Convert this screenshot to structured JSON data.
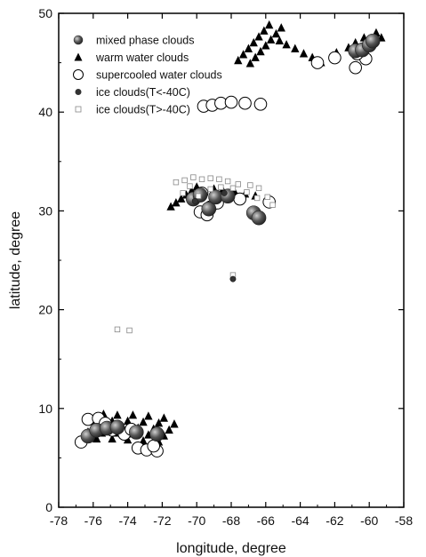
{
  "chart_data": {
    "type": "scatter",
    "title": "",
    "xlabel": "longitude, degree",
    "ylabel": "latitude, degree",
    "xlim": [
      -78,
      -58
    ],
    "ylim": [
      0,
      50
    ],
    "xticks": [
      -78,
      -76,
      -74,
      -72,
      -70,
      -68,
      -66,
      -64,
      -62,
      -60,
      -58
    ],
    "yticks": [
      0,
      10,
      20,
      30,
      40,
      50
    ],
    "grid": false,
    "legend_position": "top-left",
    "series": [
      {
        "name": "mixed phase clouds",
        "marker": "shaded-circle",
        "color": "#555555",
        "points": [
          [
            -60.8,
            46.2
          ],
          [
            -60.4,
            46.3
          ],
          [
            -60.0,
            46.8
          ],
          [
            -59.8,
            47.2
          ],
          [
            -70.2,
            31.2
          ],
          [
            -69.8,
            31.6
          ],
          [
            -69.3,
            30.2
          ],
          [
            -68.9,
            31.4
          ],
          [
            -68.2,
            31.5
          ],
          [
            -66.7,
            29.8
          ],
          [
            -66.4,
            29.3
          ],
          [
            -76.3,
            7.2
          ],
          [
            -75.8,
            7.8
          ],
          [
            -75.2,
            8.0
          ],
          [
            -74.6,
            8.1
          ],
          [
            -73.5,
            7.6
          ],
          [
            -72.3,
            7.4
          ]
        ]
      },
      {
        "name": "warm water clouds",
        "marker": "triangle",
        "color": "#000000",
        "points": [
          [
            -67.6,
            45.2
          ],
          [
            -67.3,
            45.8
          ],
          [
            -67.0,
            46.4
          ],
          [
            -66.7,
            47.0
          ],
          [
            -66.4,
            47.6
          ],
          [
            -66.1,
            48.2
          ],
          [
            -65.8,
            48.8
          ],
          [
            -66.9,
            44.9
          ],
          [
            -66.6,
            45.5
          ],
          [
            -66.3,
            46.1
          ],
          [
            -66.0,
            46.7
          ],
          [
            -65.7,
            47.3
          ],
          [
            -65.4,
            47.9
          ],
          [
            -65.1,
            48.5
          ],
          [
            -65.2,
            47.2
          ],
          [
            -64.8,
            46.8
          ],
          [
            -64.3,
            46.4
          ],
          [
            -63.8,
            45.9
          ],
          [
            -63.3,
            45.5
          ],
          [
            -62.8,
            45.0
          ],
          [
            -61.9,
            46.0
          ],
          [
            -61.2,
            46.5
          ],
          [
            -60.8,
            47.0
          ],
          [
            -60.3,
            47.5
          ],
          [
            -59.6,
            48.0
          ],
          [
            -59.3,
            47.5
          ],
          [
            -71.5,
            30.4
          ],
          [
            -71.2,
            30.8
          ],
          [
            -70.9,
            31.2
          ],
          [
            -70.6,
            31.6
          ],
          [
            -70.3,
            32.0
          ],
          [
            -70.0,
            32.4
          ],
          [
            -69.0,
            32.2
          ],
          [
            -68.5,
            32.1
          ],
          [
            -67.8,
            31.9
          ],
          [
            -67.2,
            31.7
          ],
          [
            -66.6,
            31.5
          ],
          [
            -76.6,
            7.0
          ],
          [
            -76.3,
            7.6
          ],
          [
            -76.0,
            8.2
          ],
          [
            -75.7,
            8.8
          ],
          [
            -75.4,
            9.4
          ],
          [
            -75.8,
            6.9
          ],
          [
            -75.5,
            7.5
          ],
          [
            -75.2,
            8.1
          ],
          [
            -74.9,
            8.7
          ],
          [
            -74.6,
            9.3
          ],
          [
            -74.9,
            6.9
          ],
          [
            -74.6,
            7.5
          ],
          [
            -74.3,
            8.1
          ],
          [
            -74.0,
            8.7
          ],
          [
            -73.7,
            9.3
          ],
          [
            -74.0,
            6.8
          ],
          [
            -73.7,
            7.4
          ],
          [
            -73.4,
            8.0
          ],
          [
            -73.1,
            8.6
          ],
          [
            -72.8,
            9.2
          ],
          [
            -73.1,
            6.7
          ],
          [
            -72.8,
            7.3
          ],
          [
            -72.5,
            7.9
          ],
          [
            -72.2,
            8.5
          ],
          [
            -71.9,
            9.0
          ],
          [
            -72.2,
            6.6
          ],
          [
            -71.9,
            7.2
          ],
          [
            -71.6,
            7.8
          ],
          [
            -71.3,
            8.4
          ]
        ]
      },
      {
        "name": "supercooled water clouds",
        "marker": "open-circle",
        "color": "#000000",
        "points": [
          [
            -63.0,
            45.0
          ],
          [
            -62.0,
            45.5
          ],
          [
            -60.8,
            44.5
          ],
          [
            -60.2,
            45.4
          ],
          [
            -60.7,
            45.9
          ],
          [
            -69.6,
            40.6
          ],
          [
            -69.1,
            40.7
          ],
          [
            -68.6,
            40.9
          ],
          [
            -68.0,
            41.0
          ],
          [
            -67.2,
            40.9
          ],
          [
            -66.3,
            40.8
          ],
          [
            -69.8,
            29.9
          ],
          [
            -69.4,
            29.6
          ],
          [
            -69.2,
            30.4
          ],
          [
            -68.8,
            30.8
          ],
          [
            -67.5,
            31.2
          ],
          [
            -65.8,
            30.9
          ],
          [
            -69.7,
            31.8
          ],
          [
            -76.7,
            6.6
          ],
          [
            -76.3,
            8.9
          ],
          [
            -75.7,
            9.0
          ],
          [
            -75.3,
            8.5
          ],
          [
            -74.9,
            7.8
          ],
          [
            -74.2,
            7.4
          ],
          [
            -73.8,
            7.9
          ],
          [
            -73.4,
            6.0
          ],
          [
            -72.9,
            5.8
          ],
          [
            -72.3,
            5.7
          ],
          [
            -72.5,
            6.2
          ]
        ]
      },
      {
        "name": "ice clouds(T<-40C)",
        "marker": "filled-circle",
        "color": "#333333",
        "points": [
          [
            -70.1,
            31.0
          ],
          [
            -68.4,
            31.8
          ],
          [
            -67.9,
            23.1
          ]
        ]
      },
      {
        "name": "ice clouds(T>-40C)",
        "marker": "open-square",
        "color": "#888888",
        "points": [
          [
            -74.6,
            18.0
          ],
          [
            -73.9,
            17.9
          ],
          [
            -67.9,
            23.5
          ],
          [
            -71.2,
            32.9
          ],
          [
            -70.7,
            33.1
          ],
          [
            -70.2,
            33.4
          ],
          [
            -69.7,
            33.2
          ],
          [
            -69.2,
            33.3
          ],
          [
            -68.7,
            33.2
          ],
          [
            -68.2,
            33.0
          ],
          [
            -67.6,
            32.7
          ],
          [
            -66.9,
            32.6
          ],
          [
            -66.4,
            32.3
          ],
          [
            -70.8,
            31.8
          ],
          [
            -69.9,
            31.5
          ],
          [
            -69.2,
            32.2
          ],
          [
            -68.6,
            32.4
          ],
          [
            -67.9,
            32.3
          ],
          [
            -67.1,
            31.9
          ],
          [
            -66.5,
            31.3
          ],
          [
            -65.9,
            31.4
          ],
          [
            -65.6,
            30.6
          ],
          [
            -70.4,
            32.5
          ]
        ]
      }
    ]
  }
}
